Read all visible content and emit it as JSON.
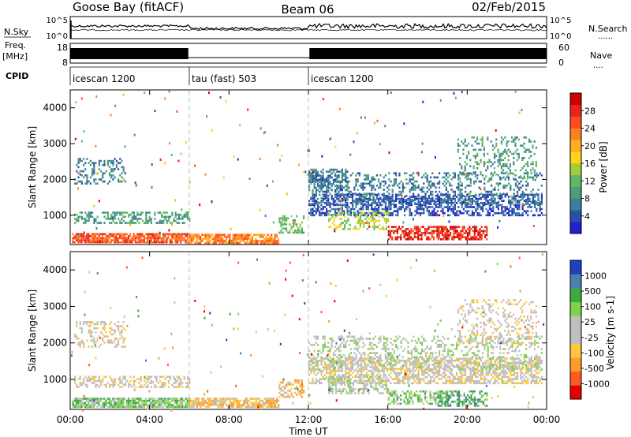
{
  "header": {
    "station": "Goose Bay (fitACF)",
    "beam": "Beam 06",
    "date": "02/Feb/2015"
  },
  "info_panels": {
    "nsky_label": "N.Sky",
    "nsearch_label": "N.Search",
    "freq_label_1": "Freq.",
    "freq_label_2": "[MHz]",
    "nave_label": "Nave",
    "cpid_label": "CPID",
    "noise_left_ticks": [
      "10^5",
      "10^0"
    ],
    "noise_right_ticks": [
      "10^5",
      "10^0"
    ],
    "freq_left_ticks": [
      "18",
      "8"
    ],
    "freq_right_ticks": [
      "60",
      "0"
    ],
    "dotted_marker": "......",
    "short_dotted_marker": "...."
  },
  "cpid_segments": [
    {
      "label": "icescan 1200",
      "start_hr": 0,
      "end_hr": 6
    },
    {
      "label": "tau (fast) 503",
      "start_hr": 6,
      "end_hr": 12
    },
    {
      "label": "icescan 1200",
      "start_hr": 12,
      "end_hr": 24
    }
  ],
  "freq_blocks": [
    {
      "start_hr": 0,
      "end_hr": 5.95,
      "level": 1
    },
    {
      "start_hr": 5.95,
      "end_hr": 12.05,
      "level": 0
    },
    {
      "start_hr": 12.05,
      "end_hr": 24,
      "level": 1
    }
  ],
  "axes": {
    "x_ticks": [
      "00:00",
      "04:00",
      "08:00",
      "12:00",
      "16:00",
      "20:00",
      "00:00"
    ],
    "x_label": "Time UT",
    "y_label": "Slant Range [km]",
    "y_ticks": [
      1000,
      2000,
      3000,
      4000
    ],
    "y_ticks_text": [
      "1000",
      "2000",
      "3000",
      "4000"
    ],
    "ylim": [
      180,
      4500
    ],
    "xlim_hours": [
      0,
      24
    ]
  },
  "power_colorbar": {
    "label": "Power [dB]",
    "colors": [
      "#2020d0",
      "#2a4fa8",
      "#3d7f9a",
      "#4a9e7a",
      "#5fb860",
      "#9fcf3c",
      "#ffd21e",
      "#ffae1e",
      "#ff7f1e",
      "#ff4d1e",
      "#e8241a",
      "#d00000"
    ],
    "tick_labels": [
      "4",
      "8",
      "12",
      "16",
      "20",
      "24",
      "28"
    ]
  },
  "velocity_colorbar": {
    "label": "Velocity [m s-1]",
    "colors": [
      "#e60000",
      "#ff5a1e",
      "#ff9a28",
      "#ffc83c",
      "#bfbfbf",
      "#bfbfbf",
      "#7fd34a",
      "#3caa3c",
      "#4a7fae",
      "#2040c0"
    ],
    "tick_labels": [
      "-1000",
      "-500",
      "-100",
      "-25",
      "25",
      "100",
      "500",
      "1000"
    ]
  },
  "chart_data": [
    {
      "type": "heatmap",
      "title": "Power",
      "xlabel": "Time UT",
      "ylabel": "Slant Range [km]",
      "xlim_hours": [
        0,
        24
      ],
      "ylim": [
        180,
        4500
      ],
      "colorbar_label": "Power [dB]",
      "regions": [
        {
          "t": [
            0.1,
            5.9
          ],
          "r": [
            250,
            500
          ],
          "level": 9,
          "density": 0.85
        },
        {
          "t": [
            5.9,
            10.5
          ],
          "r": [
            250,
            480
          ],
          "level": 8,
          "density": 0.8
        },
        {
          "t": [
            0.2,
            6
          ],
          "r": [
            800,
            1100
          ],
          "level": 3,
          "density": 0.5
        },
        {
          "t": [
            0.2,
            2.8
          ],
          "r": [
            1900,
            2600
          ],
          "level": 2,
          "density": 0.35
        },
        {
          "t": [
            10.5,
            11.8
          ],
          "r": [
            500,
            1000
          ],
          "level": 4,
          "density": 0.45
        },
        {
          "t": [
            12,
            23.8
          ],
          "r": [
            1000,
            1600
          ],
          "level": 1,
          "density": 0.55
        },
        {
          "t": [
            12,
            23.8
          ],
          "r": [
            1300,
            2200
          ],
          "level": 2,
          "density": 0.3
        },
        {
          "t": [
            16,
            19
          ],
          "r": [
            350,
            700
          ],
          "level": 10,
          "density": 0.6
        },
        {
          "t": [
            18.5,
            21
          ],
          "r": [
            300,
            700
          ],
          "level": 10,
          "density": 0.65
        },
        {
          "t": [
            13,
            16
          ],
          "r": [
            600,
            1100
          ],
          "level": 5,
          "density": 0.45
        },
        {
          "t": [
            19.5,
            23.5
          ],
          "r": [
            2000,
            3200
          ],
          "level": 3,
          "density": 0.25
        },
        {
          "t": [
            12,
            14
          ],
          "r": [
            1700,
            2300
          ],
          "level": 2,
          "density": 0.5
        }
      ]
    },
    {
      "type": "heatmap",
      "title": "Velocity",
      "xlabel": "Time UT",
      "ylabel": "Slant Range [km]",
      "xlim_hours": [
        0,
        24
      ],
      "ylim": [
        180,
        4500
      ],
      "colorbar_label": "Velocity [m s-1]",
      "regions": [
        {
          "t": [
            0.1,
            6
          ],
          "r": [
            250,
            500
          ],
          "level": 6,
          "density": 0.85
        },
        {
          "t": [
            6,
            10.5
          ],
          "r": [
            250,
            500
          ],
          "level": 3,
          "density": 0.8
        },
        {
          "t": [
            0.2,
            6
          ],
          "r": [
            800,
            1100
          ],
          "level": 4,
          "density": 0.5
        },
        {
          "t": [
            0.2,
            2.8
          ],
          "r": [
            1900,
            2600
          ],
          "level": 4,
          "density": 0.35
        },
        {
          "t": [
            10.5,
            11.8
          ],
          "r": [
            500,
            1000
          ],
          "level": 3,
          "density": 0.45
        },
        {
          "t": [
            12,
            23.8
          ],
          "r": [
            900,
            1600
          ],
          "level": 4,
          "density": 0.6
        },
        {
          "t": [
            12,
            23.8
          ],
          "r": [
            1300,
            2200
          ],
          "level": 5,
          "density": 0.3
        },
        {
          "t": [
            16,
            19
          ],
          "r": [
            350,
            700
          ],
          "level": 6,
          "density": 0.55
        },
        {
          "t": [
            18.5,
            21
          ],
          "r": [
            300,
            700
          ],
          "level": 7,
          "density": 0.5
        },
        {
          "t": [
            13,
            16
          ],
          "r": [
            600,
            1100
          ],
          "level": 5,
          "density": 0.4
        },
        {
          "t": [
            19.5,
            23.5
          ],
          "r": [
            2000,
            3200
          ],
          "level": 4,
          "density": 0.25
        }
      ]
    }
  ]
}
